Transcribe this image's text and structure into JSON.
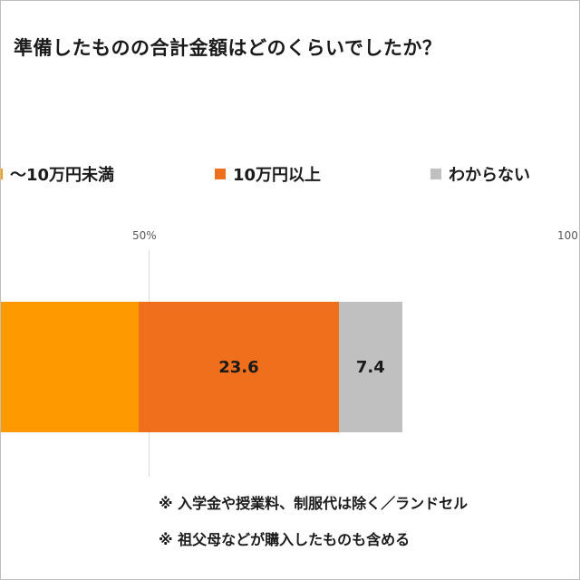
{
  "title": "準備したものの合計金額はどのくらいでしたか？",
  "chart_data": {
    "type": "bar",
    "orientation": "horizontal-stacked",
    "title": "準備したものの合計金額はどのくらいでしたか？",
    "axis_ticks": [
      "50%",
      "100"
    ],
    "series": [
      {
        "name": "〜10万円未満",
        "value": 48.8,
        "color": "#ff9900"
      },
      {
        "name": "10万円以上",
        "value": 23.6,
        "color": "#f06f1c"
      },
      {
        "name": "わからない",
        "value": 7.4,
        "color": "#c0c0c0"
      }
    ],
    "legend_position": "top",
    "grid": true
  },
  "legend": [
    {
      "label": "〜10万円未満",
      "color": "#ff9900"
    },
    {
      "label": "10万円以上",
      "color": "#f06f1c"
    },
    {
      "label": "わからない",
      "color": "#c0c0c0"
    }
  ],
  "notes": [
    "※ 入学金や授業料、制服代は除く／ランドセル",
    "※ 祖父母などが購入したものも含める"
  ]
}
